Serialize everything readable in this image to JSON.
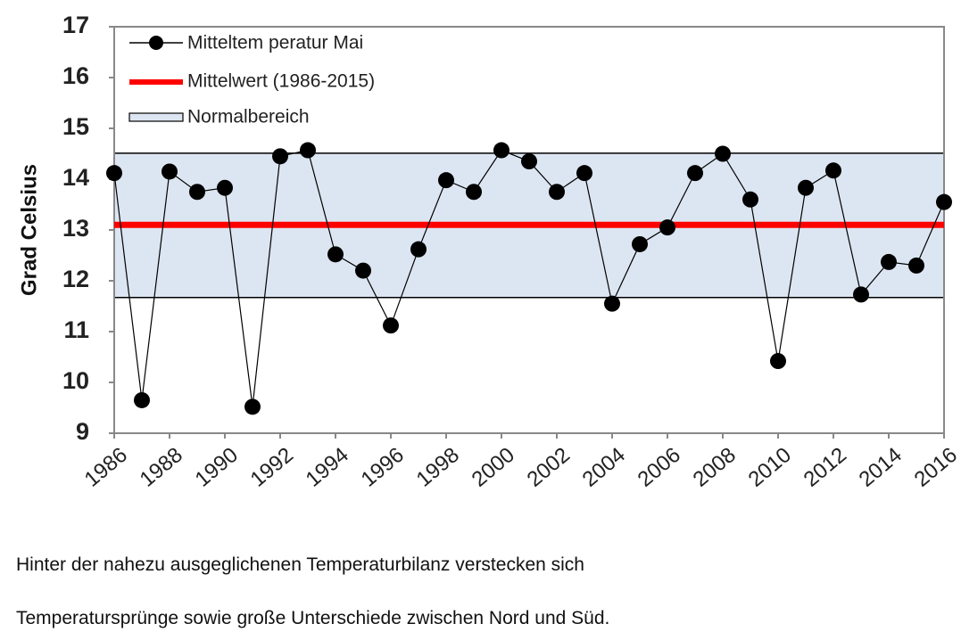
{
  "chart_data": {
    "type": "line",
    "x": [
      1986,
      1987,
      1988,
      1989,
      1990,
      1991,
      1992,
      1993,
      1994,
      1995,
      1996,
      1997,
      1998,
      1999,
      2000,
      2001,
      2002,
      2003,
      2004,
      2005,
      2006,
      2007,
      2008,
      2009,
      2010,
      2011,
      2012,
      2013,
      2014,
      2015,
      2016
    ],
    "series": [
      {
        "name": "Mitteltem peratur Mai",
        "color": "#000000",
        "values": [
          14.12,
          9.65,
          14.15,
          13.75,
          13.83,
          9.52,
          14.45,
          14.57,
          12.52,
          12.2,
          11.12,
          12.62,
          13.98,
          13.75,
          14.57,
          14.35,
          13.75,
          14.12,
          11.55,
          12.72,
          13.05,
          14.12,
          14.5,
          13.6,
          10.42,
          13.83,
          14.17,
          11.73,
          12.37,
          12.3,
          13.55
        ]
      }
    ],
    "mean": {
      "name": "Mittelwert (1986-2015)",
      "value": 13.1,
      "color": "#ff0000"
    },
    "band": {
      "name": "Normalbereich",
      "low": 11.67,
      "high": 14.51,
      "color": "#dce6f2"
    },
    "ylabel": "Grad Celsius",
    "xlim": [
      1986,
      2016
    ],
    "xticks": [
      1986,
      1988,
      1990,
      1992,
      1994,
      1996,
      1998,
      2000,
      2002,
      2004,
      2006,
      2008,
      2010,
      2012,
      2014,
      2016
    ],
    "ylim": [
      9,
      17
    ],
    "yticks": [
      9,
      10,
      11,
      12,
      13,
      14,
      15,
      16,
      17
    ]
  },
  "caption": [
    "Hinter der nahezu ausgeglichenen Temperaturbilanz verstecken sich",
    "Temperatursprünge sowie große Unterschiede zwischen Nord und Süd."
  ]
}
